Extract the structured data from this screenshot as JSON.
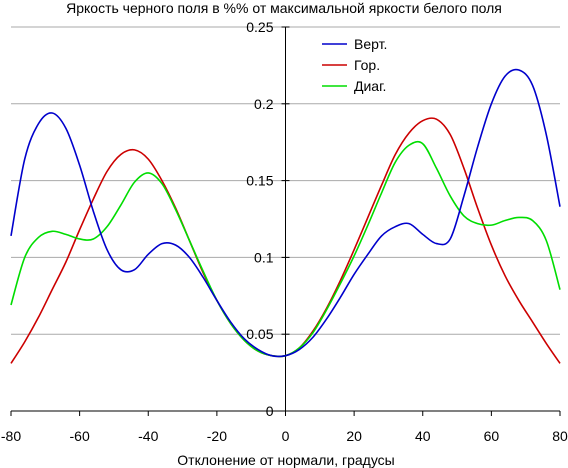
{
  "chart_data": {
    "type": "line",
    "title": "Яркость черного поля в %% от максимальной яркости белого поля",
    "xlabel": "Отклонение от нормали, градусы",
    "ylabel": "",
    "xlim": [
      -80,
      80
    ],
    "ylim": [
      0,
      0.25
    ],
    "x_ticks": [
      -80,
      -60,
      -40,
      -20,
      0,
      20,
      40,
      60,
      80
    ],
    "x_tick_labels": [
      "-80",
      "-60",
      "-40",
      "-20",
      "0",
      "20",
      "40",
      "60",
      "80"
    ],
    "y_ticks": [
      0,
      0.05,
      0.1,
      0.15,
      0.2,
      0.25
    ],
    "y_tick_labels": [
      "0",
      "0.05",
      "0.1",
      "0.15",
      "0.2",
      "0.25"
    ],
    "grid": "horizontal",
    "legend_position": "top-center",
    "x": [
      -80,
      -76,
      -72,
      -68,
      -64,
      -60,
      -56,
      -52,
      -48,
      -44,
      -40,
      -36,
      -32,
      -28,
      -24,
      -20,
      -16,
      -12,
      -8,
      -4,
      0,
      4,
      8,
      12,
      16,
      20,
      24,
      28,
      32,
      36,
      40,
      44,
      48,
      52,
      56,
      60,
      64,
      68,
      72,
      76,
      80
    ],
    "series": [
      {
        "name": "Верт.",
        "color": "#0000cc",
        "values": [
          0.114,
          0.164,
          0.187,
          0.194,
          0.184,
          0.16,
          0.13,
          0.105,
          0.092,
          0.092,
          0.102,
          0.109,
          0.108,
          0.1,
          0.087,
          0.072,
          0.058,
          0.047,
          0.04,
          0.036,
          0.036,
          0.04,
          0.048,
          0.06,
          0.074,
          0.089,
          0.102,
          0.114,
          0.12,
          0.122,
          0.115,
          0.109,
          0.112,
          0.14,
          0.172,
          0.2,
          0.218,
          0.222,
          0.212,
          0.18,
          0.133
        ]
      },
      {
        "name": "Гор.",
        "color": "#cc0000",
        "values": [
          0.031,
          0.045,
          0.061,
          0.079,
          0.097,
          0.118,
          0.138,
          0.156,
          0.167,
          0.17,
          0.164,
          0.15,
          0.132,
          0.111,
          0.09,
          0.072,
          0.057,
          0.046,
          0.039,
          0.036,
          0.036,
          0.041,
          0.052,
          0.067,
          0.085,
          0.105,
          0.126,
          0.147,
          0.167,
          0.181,
          0.189,
          0.19,
          0.18,
          0.158,
          0.132,
          0.108,
          0.088,
          0.072,
          0.058,
          0.044,
          0.031
        ]
      },
      {
        "name": "Диаг.",
        "color": "#00dd00",
        "values": [
          0.069,
          0.1,
          0.113,
          0.117,
          0.115,
          0.112,
          0.112,
          0.12,
          0.134,
          0.149,
          0.155,
          0.148,
          0.131,
          0.111,
          0.091,
          0.072,
          0.057,
          0.046,
          0.039,
          0.036,
          0.036,
          0.041,
          0.051,
          0.066,
          0.083,
          0.101,
          0.121,
          0.142,
          0.162,
          0.173,
          0.174,
          0.158,
          0.14,
          0.127,
          0.122,
          0.121,
          0.124,
          0.126,
          0.124,
          0.111,
          0.079
        ]
      }
    ]
  }
}
